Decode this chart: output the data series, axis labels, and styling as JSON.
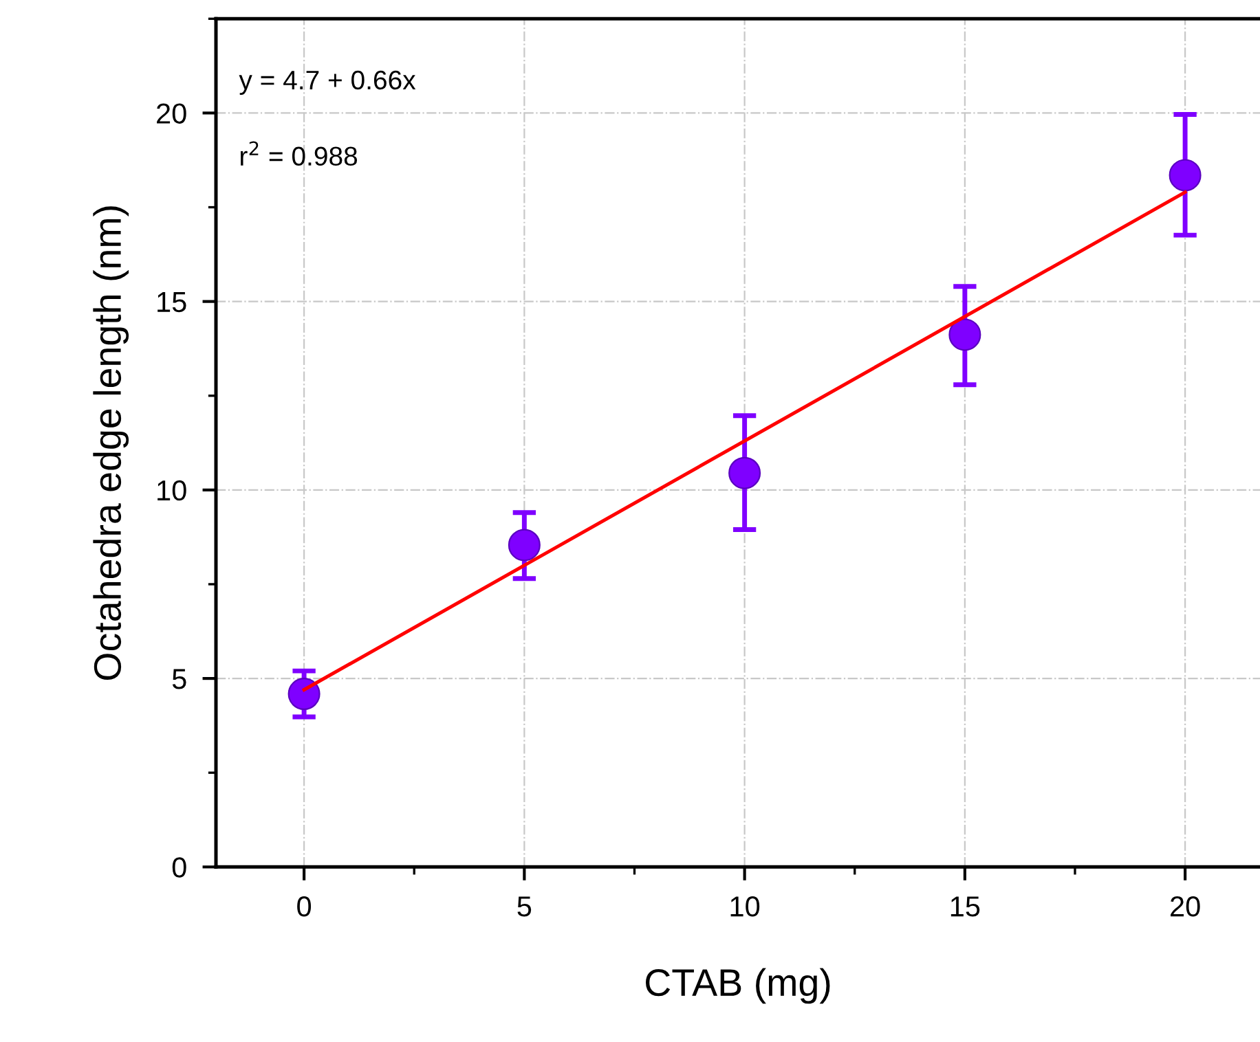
{
  "chart_data": {
    "type": "scatter",
    "xlabel": "CTAB (mg)",
    "ylabel": "Octahedra edge length (nm)",
    "x": [
      0,
      5,
      10,
      15,
      20
    ],
    "series": [
      {
        "color": "#7f00ff",
        "values": [
          4.59,
          8.54,
          10.45,
          14.12,
          18.35
        ],
        "errors": [
          [
            3.98,
            5.2
          ],
          [
            7.65,
            9.4
          ],
          [
            8.95,
            11.97
          ],
          [
            12.79,
            15.4
          ],
          [
            16.76,
            19.96
          ]
        ],
        "marker": "circle"
      },
      {
        "type": "line",
        "color": "#ff0000",
        "x": [
          0,
          20
        ],
        "values": [
          4.7,
          17.9
        ],
        "line_style": "solid"
      }
    ],
    "annotations": [
      "y = 4.7 + 0.66x",
      "r$^{2}$ = 0.988"
    ],
    "xlim": [
      -2,
      21.7
    ],
    "ylim": [
      0,
      22.5
    ],
    "xticks": [
      0,
      5,
      10,
      15,
      20
    ],
    "yticks": [
      0,
      5,
      10,
      15,
      20
    ],
    "grid": true
  }
}
